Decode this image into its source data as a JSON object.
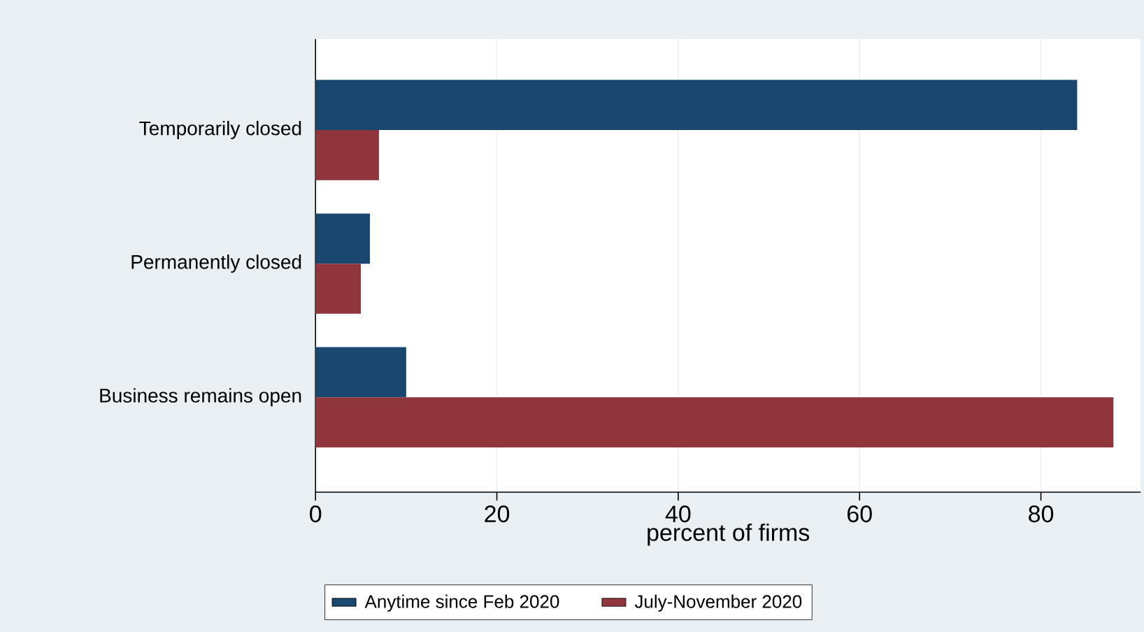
{
  "chart_data": {
    "type": "bar",
    "orientation": "horizontal",
    "xlabel": "percent of firms",
    "categories": [
      "Temporarily closed",
      "Permanently closed",
      "Business remains open"
    ],
    "series": [
      {
        "name": "Anytime since Feb 2020",
        "color": "#1a476f",
        "values": [
          84,
          6,
          10
        ]
      },
      {
        "name": "July-November 2020",
        "color": "#90353b",
        "values": [
          7,
          5,
          88
        ]
      }
    ],
    "xlim": [
      0,
      91
    ],
    "xticks": [
      0,
      20,
      40,
      60,
      80
    ],
    "grid": "x",
    "legend": "bottom"
  }
}
